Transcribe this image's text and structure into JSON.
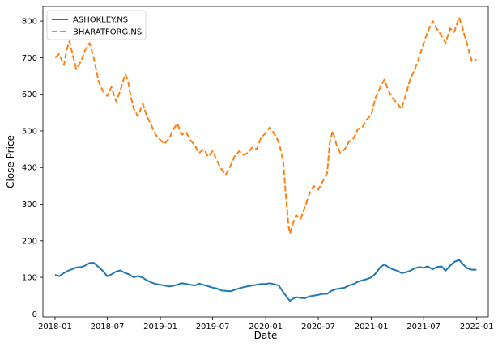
{
  "chart_data": {
    "type": "line",
    "xlabel": "Date",
    "ylabel": "Close Price",
    "x_ticks": [
      "2018-01",
      "2018-07",
      "2019-01",
      "2019-07",
      "2020-01",
      "2020-07",
      "2021-01",
      "2021-07",
      "2022-01"
    ],
    "y_ticks": [
      0,
      100,
      200,
      300,
      400,
      500,
      600,
      700,
      800
    ],
    "xlim": [
      "2017-11-20",
      "2022-02-10"
    ],
    "ylim": [
      -8,
      840
    ],
    "grid": false,
    "legend_position": "top-left",
    "series": [
      {
        "name": "ASHOKLEY.NS",
        "color": "#1f77b4",
        "style": "solid",
        "points": [
          [
            "2018-01-01",
            107
          ],
          [
            "2018-01-15",
            103
          ],
          [
            "2018-02-01",
            112
          ],
          [
            "2018-02-15",
            118
          ],
          [
            "2018-03-01",
            122
          ],
          [
            "2018-03-15",
            127
          ],
          [
            "2018-04-01",
            128
          ],
          [
            "2018-04-15",
            132
          ],
          [
            "2018-05-01",
            139
          ],
          [
            "2018-05-15",
            140
          ],
          [
            "2018-06-01",
            128
          ],
          [
            "2018-06-15",
            118
          ],
          [
            "2018-07-01",
            103
          ],
          [
            "2018-07-15",
            108
          ],
          [
            "2018-08-01",
            116
          ],
          [
            "2018-08-15",
            119
          ],
          [
            "2018-09-01",
            112
          ],
          [
            "2018-09-15",
            108
          ],
          [
            "2018-10-01",
            100
          ],
          [
            "2018-10-15",
            104
          ],
          [
            "2018-11-01",
            99
          ],
          [
            "2018-11-15",
            92
          ],
          [
            "2018-12-01",
            86
          ],
          [
            "2018-12-15",
            82
          ],
          [
            "2019-01-01",
            80
          ],
          [
            "2019-01-15",
            78
          ],
          [
            "2019-02-01",
            75
          ],
          [
            "2019-02-15",
            77
          ],
          [
            "2019-03-01",
            80
          ],
          [
            "2019-03-15",
            84
          ],
          [
            "2019-04-01",
            82
          ],
          [
            "2019-04-15",
            80
          ],
          [
            "2019-05-01",
            78
          ],
          [
            "2019-05-15",
            83
          ],
          [
            "2019-06-01",
            79
          ],
          [
            "2019-06-15",
            76
          ],
          [
            "2019-07-01",
            72
          ],
          [
            "2019-07-15",
            70
          ],
          [
            "2019-08-01",
            64
          ],
          [
            "2019-08-15",
            63
          ],
          [
            "2019-09-01",
            62
          ],
          [
            "2019-09-15",
            66
          ],
          [
            "2019-10-01",
            70
          ],
          [
            "2019-10-15",
            73
          ],
          [
            "2019-11-01",
            76
          ],
          [
            "2019-11-15",
            78
          ],
          [
            "2019-12-01",
            80
          ],
          [
            "2019-12-15",
            82
          ],
          [
            "2020-01-01",
            82
          ],
          [
            "2020-01-15",
            84
          ],
          [
            "2020-02-01",
            81
          ],
          [
            "2020-02-15",
            78
          ],
          [
            "2020-03-01",
            60
          ],
          [
            "2020-03-15",
            45
          ],
          [
            "2020-03-25",
            36
          ],
          [
            "2020-04-01",
            40
          ],
          [
            "2020-04-15",
            46
          ],
          [
            "2020-05-01",
            44
          ],
          [
            "2020-05-15",
            43
          ],
          [
            "2020-06-01",
            48
          ],
          [
            "2020-06-15",
            50
          ],
          [
            "2020-07-01",
            52
          ],
          [
            "2020-07-15",
            55
          ],
          [
            "2020-08-01",
            55
          ],
          [
            "2020-08-15",
            63
          ],
          [
            "2020-09-01",
            68
          ],
          [
            "2020-09-15",
            70
          ],
          [
            "2020-10-01",
            72
          ],
          [
            "2020-10-15",
            78
          ],
          [
            "2020-11-01",
            82
          ],
          [
            "2020-11-15",
            88
          ],
          [
            "2020-12-01",
            92
          ],
          [
            "2020-12-15",
            95
          ],
          [
            "2021-01-01",
            100
          ],
          [
            "2021-01-15",
            110
          ],
          [
            "2021-02-01",
            128
          ],
          [
            "2021-02-15",
            135
          ],
          [
            "2021-03-01",
            128
          ],
          [
            "2021-03-15",
            122
          ],
          [
            "2021-04-01",
            118
          ],
          [
            "2021-04-15",
            112
          ],
          [
            "2021-05-01",
            114
          ],
          [
            "2021-05-15",
            118
          ],
          [
            "2021-06-01",
            125
          ],
          [
            "2021-06-15",
            128
          ],
          [
            "2021-07-01",
            126
          ],
          [
            "2021-07-15",
            130
          ],
          [
            "2021-08-01",
            122
          ],
          [
            "2021-08-15",
            128
          ],
          [
            "2021-09-01",
            130
          ],
          [
            "2021-09-15",
            118
          ],
          [
            "2021-10-01",
            132
          ],
          [
            "2021-10-15",
            142
          ],
          [
            "2021-11-01",
            148
          ],
          [
            "2021-11-15",
            135
          ],
          [
            "2021-12-01",
            124
          ],
          [
            "2021-12-15",
            121
          ],
          [
            "2021-12-31",
            121
          ]
        ]
      },
      {
        "name": "BHARATFORG.NS",
        "color": "#ff7f0e",
        "style": "dashed",
        "points": [
          [
            "2018-01-01",
            700
          ],
          [
            "2018-01-15",
            710
          ],
          [
            "2018-02-01",
            680
          ],
          [
            "2018-02-10",
            720
          ],
          [
            "2018-02-20",
            745
          ],
          [
            "2018-03-01",
            715
          ],
          [
            "2018-03-15",
            670
          ],
          [
            "2018-04-01",
            690
          ],
          [
            "2018-04-15",
            720
          ],
          [
            "2018-05-01",
            740
          ],
          [
            "2018-05-15",
            700
          ],
          [
            "2018-06-01",
            635
          ],
          [
            "2018-06-15",
            610
          ],
          [
            "2018-07-01",
            595
          ],
          [
            "2018-07-15",
            620
          ],
          [
            "2018-08-01",
            580
          ],
          [
            "2018-08-15",
            610
          ],
          [
            "2018-09-01",
            655
          ],
          [
            "2018-09-10",
            640
          ],
          [
            "2018-09-20",
            595
          ],
          [
            "2018-10-01",
            560
          ],
          [
            "2018-10-15",
            540
          ],
          [
            "2018-11-01",
            575
          ],
          [
            "2018-11-15",
            540
          ],
          [
            "2018-12-01",
            515
          ],
          [
            "2018-12-15",
            490
          ],
          [
            "2019-01-01",
            475
          ],
          [
            "2019-01-15",
            465
          ],
          [
            "2019-02-01",
            480
          ],
          [
            "2019-02-15",
            505
          ],
          [
            "2019-03-01",
            520
          ],
          [
            "2019-03-15",
            490
          ],
          [
            "2019-04-01",
            495
          ],
          [
            "2019-04-15",
            475
          ],
          [
            "2019-05-01",
            460
          ],
          [
            "2019-05-15",
            440
          ],
          [
            "2019-06-01",
            450
          ],
          [
            "2019-06-15",
            430
          ],
          [
            "2019-07-01",
            445
          ],
          [
            "2019-07-15",
            420
          ],
          [
            "2019-08-01",
            395
          ],
          [
            "2019-08-15",
            380
          ],
          [
            "2019-09-01",
            405
          ],
          [
            "2019-09-15",
            430
          ],
          [
            "2019-10-01",
            445
          ],
          [
            "2019-10-15",
            435
          ],
          [
            "2019-11-01",
            440
          ],
          [
            "2019-11-15",
            455
          ],
          [
            "2019-12-01",
            450
          ],
          [
            "2019-12-15",
            480
          ],
          [
            "2020-01-01",
            495
          ],
          [
            "2020-01-15",
            510
          ],
          [
            "2020-02-01",
            490
          ],
          [
            "2020-02-15",
            470
          ],
          [
            "2020-03-01",
            420
          ],
          [
            "2020-03-10",
            330
          ],
          [
            "2020-03-20",
            240
          ],
          [
            "2020-03-25",
            220
          ],
          [
            "2020-04-05",
            250
          ],
          [
            "2020-04-15",
            270
          ],
          [
            "2020-05-01",
            260
          ],
          [
            "2020-05-15",
            290
          ],
          [
            "2020-06-01",
            330
          ],
          [
            "2020-06-15",
            350
          ],
          [
            "2020-07-01",
            340
          ],
          [
            "2020-07-15",
            360
          ],
          [
            "2020-08-01",
            385
          ],
          [
            "2020-08-10",
            470
          ],
          [
            "2020-08-20",
            500
          ],
          [
            "2020-09-01",
            465
          ],
          [
            "2020-09-15",
            440
          ],
          [
            "2020-10-01",
            450
          ],
          [
            "2020-10-15",
            470
          ],
          [
            "2020-11-01",
            480
          ],
          [
            "2020-11-15",
            505
          ],
          [
            "2020-12-01",
            510
          ],
          [
            "2020-12-15",
            530
          ],
          [
            "2021-01-01",
            545
          ],
          [
            "2021-01-15",
            590
          ],
          [
            "2021-02-01",
            620
          ],
          [
            "2021-02-15",
            640
          ],
          [
            "2021-03-01",
            610
          ],
          [
            "2021-03-15",
            590
          ],
          [
            "2021-04-01",
            575
          ],
          [
            "2021-04-15",
            560
          ],
          [
            "2021-05-01",
            600
          ],
          [
            "2021-05-15",
            640
          ],
          [
            "2021-06-01",
            670
          ],
          [
            "2021-06-15",
            700
          ],
          [
            "2021-07-01",
            740
          ],
          [
            "2021-07-15",
            770
          ],
          [
            "2021-08-01",
            800
          ],
          [
            "2021-08-15",
            780
          ],
          [
            "2021-09-01",
            760
          ],
          [
            "2021-09-15",
            740
          ],
          [
            "2021-10-01",
            780
          ],
          [
            "2021-10-15",
            770
          ],
          [
            "2021-11-01",
            810
          ],
          [
            "2021-11-10",
            790
          ],
          [
            "2021-11-20",
            760
          ],
          [
            "2021-12-01",
            730
          ],
          [
            "2021-12-15",
            690
          ],
          [
            "2021-12-31",
            695
          ]
        ]
      }
    ]
  }
}
